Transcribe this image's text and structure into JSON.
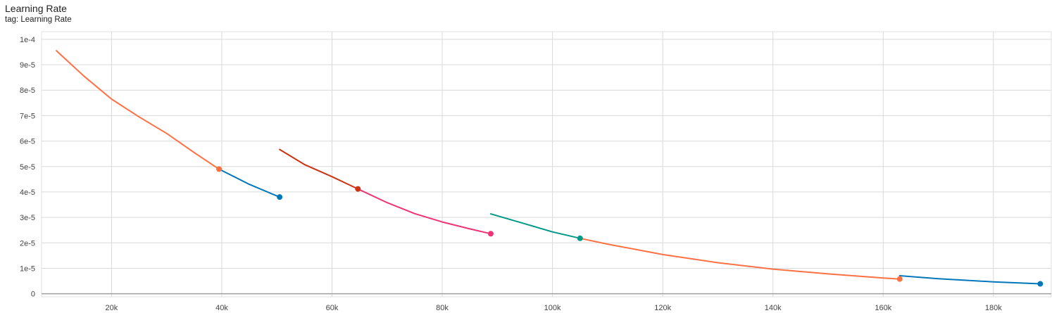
{
  "header": {
    "title": "Learning Rate",
    "subtitle": "tag: Learning Rate"
  },
  "chart_data": {
    "type": "line",
    "title": "Learning Rate",
    "xlabel": "",
    "ylabel": "",
    "xlim": [
      7300,
      190500
    ],
    "ylim": [
      -1.2e-06,
      0.000103
    ],
    "grid": true,
    "x_ticks": [
      20000,
      40000,
      60000,
      80000,
      100000,
      120000,
      140000,
      160000,
      180000
    ],
    "x_tick_labels": [
      "20k",
      "40k",
      "60k",
      "80k",
      "100k",
      "120k",
      "140k",
      "160k",
      "180k"
    ],
    "y_ticks": [
      0,
      1e-05,
      2e-05,
      3e-05,
      4e-05,
      5e-05,
      6e-05,
      7e-05,
      8e-05,
      9e-05,
      0.0001
    ],
    "y_tick_labels": [
      "0",
      "1e-5",
      "2e-5",
      "3e-5",
      "4e-5",
      "5e-5",
      "6e-5",
      "7e-5",
      "8e-5",
      "9e-5",
      "1e-4"
    ],
    "series": [
      {
        "color": "#ff7043",
        "end_marker": true,
        "x": [
          10000,
          15000,
          20000,
          25000,
          30000,
          35000,
          39500
        ],
        "y": [
          9.55e-05,
          8.55e-05,
          7.65e-05,
          6.95e-05,
          6.3e-05,
          5.55e-05,
          4.9e-05
        ]
      },
      {
        "color": "#0077bb",
        "end_marker": true,
        "x": [
          39500,
          45000,
          50500
        ],
        "y": [
          4.9e-05,
          4.3e-05,
          3.8e-05
        ]
      },
      {
        "color": "#cc3311",
        "end_marker": true,
        "x": [
          50500,
          55000,
          60000,
          64700
        ],
        "y": [
          5.67e-05,
          5.08e-05,
          4.6e-05,
          4.12e-05
        ]
      },
      {
        "color": "#ee3377",
        "end_marker": true,
        "x": [
          64700,
          70000,
          75000,
          80000,
          85000,
          88800
        ],
        "y": [
          4.12e-05,
          3.58e-05,
          3.15e-05,
          2.82e-05,
          2.55e-05,
          2.36e-05
        ]
      },
      {
        "color": "#009988",
        "end_marker": true,
        "x": [
          88800,
          95000,
          100000,
          105000
        ],
        "y": [
          3.14e-05,
          2.75e-05,
          2.43e-05,
          2.18e-05
        ]
      },
      {
        "color": "#ff7043",
        "end_marker": true,
        "x": [
          105000,
          110000,
          120000,
          130000,
          140000,
          150000,
          160000,
          163000
        ],
        "y": [
          2.18e-05,
          1.95e-05,
          1.54e-05,
          1.22e-05,
          9.7e-06,
          7.8e-06,
          6.2e-06,
          5.8e-06
        ]
      },
      {
        "color": "#0077bb",
        "end_marker": true,
        "x": [
          163000,
          170000,
          180000,
          188500
        ],
        "y": [
          7.1e-06,
          5.9e-06,
          4.7e-06,
          3.9e-06
        ]
      }
    ]
  }
}
